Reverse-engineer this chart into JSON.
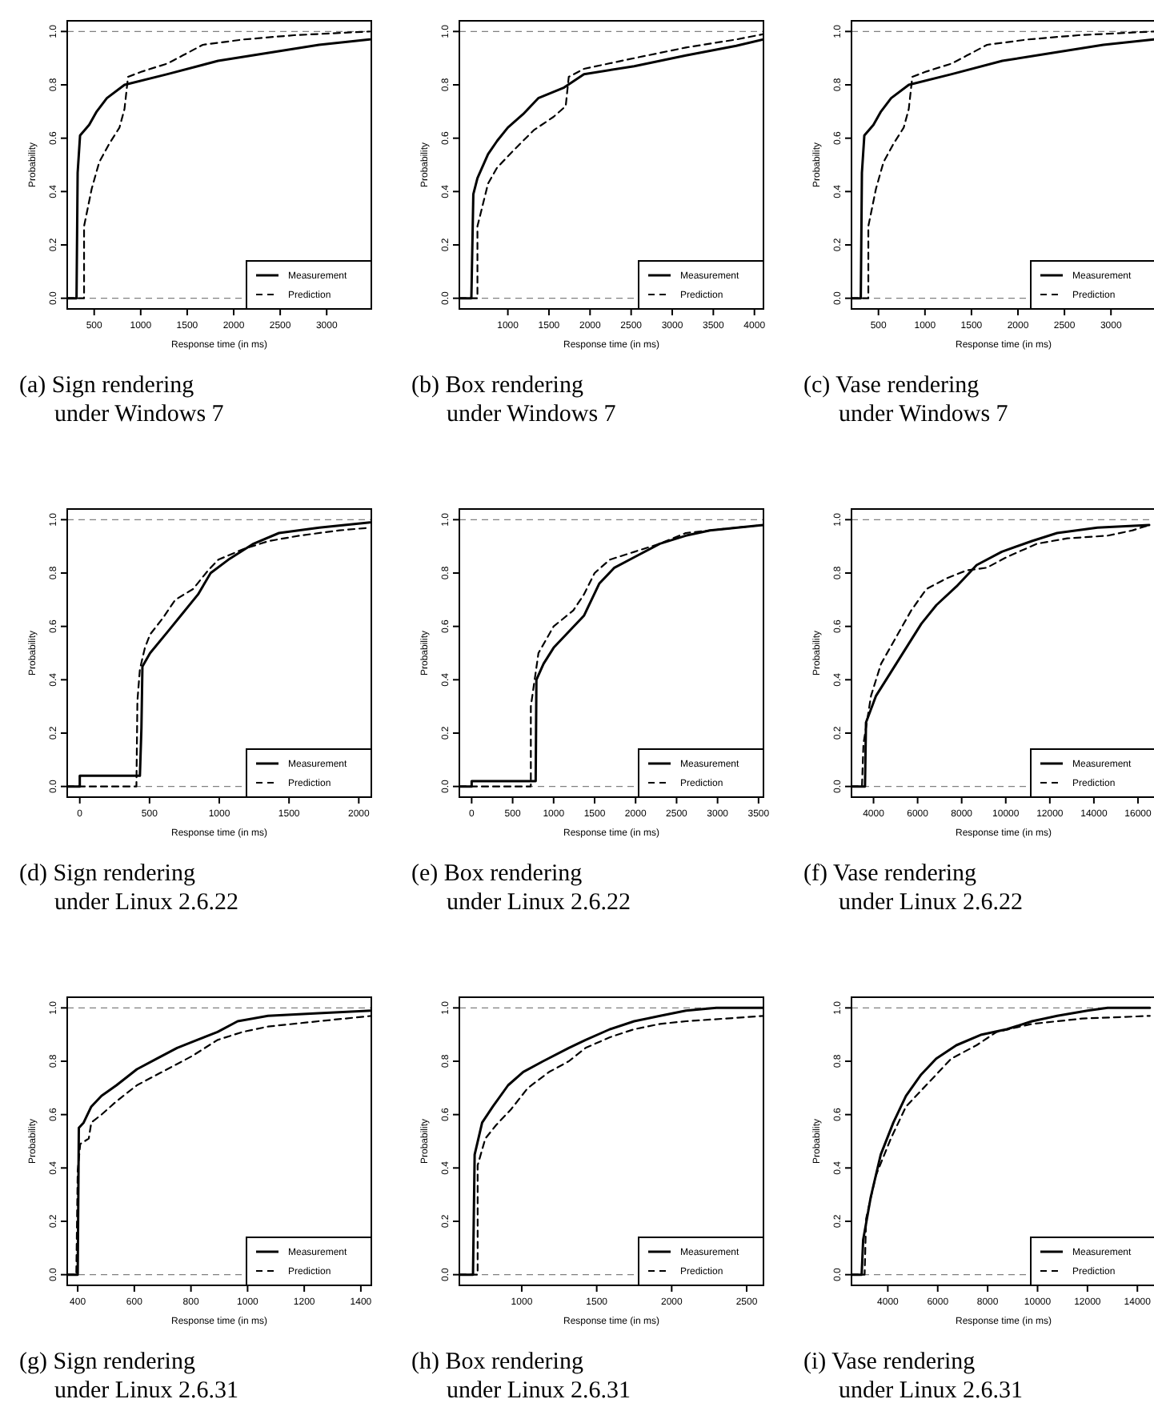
{
  "chart_data": [
    {
      "type": "line",
      "xlabel": "Response time (in ms)",
      "ylabel": "Probability",
      "annotations": [
        "(a) Sign rendering",
        "under Windows 7"
      ],
      "xlim": [
        210,
        3480
      ],
      "xticks": [
        500,
        1000,
        1500,
        2000,
        2500,
        3000
      ],
      "ylim": [
        -0.04,
        1.04
      ],
      "yticks": [
        {
          "value": 0,
          "label": "0.0"
        },
        {
          "value": 0.2,
          "label": "0.2"
        },
        {
          "value": 0.4,
          "label": "0.4"
        },
        {
          "value": 0.6,
          "label": "0.6"
        },
        {
          "value": 0.8,
          "label": "0.8"
        },
        {
          "value": 1,
          "label": "1.0"
        }
      ],
      "legend": "bottom right",
      "grid": false,
      "ref_lines": [
        {
          "axis": "y",
          "value": 0,
          "color": "#808080",
          "line_style": "dashed"
        },
        {
          "axis": "y",
          "value": 1,
          "color": "#808080",
          "line_style": "dashed"
        }
      ],
      "series": [
        {
          "name": "Measurement",
          "color": "#000000",
          "line_style": "solid",
          "x": [
            210,
            310,
            322,
            348,
            446,
            527,
            636,
            826,
            1288,
            1832,
            2375,
            2918,
            3462
          ],
          "values": [
            0,
            0,
            0.47,
            0.61,
            0.65,
            0.7,
            0.75,
            0.8,
            0.84,
            0.89,
            0.92,
            0.95,
            0.97
          ]
        },
        {
          "name": "Prediction",
          "color": "#000000",
          "line_style": "dashed",
          "x": [
            210,
            391,
            391,
            473,
            554,
            663,
            772,
            826,
            864,
            1016,
            1288,
            1451,
            1668,
            2103,
            2647,
            3462
          ],
          "values": [
            0,
            0,
            0.27,
            0.41,
            0.51,
            0.58,
            0.64,
            0.71,
            0.83,
            0.85,
            0.88,
            0.91,
            0.95,
            0.97,
            0.986,
            1.0
          ]
        }
      ]
    },
    {
      "type": "line",
      "xlabel": "Response time (in ms)",
      "ylabel": "Probability",
      "annotations": [
        "(b) Box rendering",
        "under Windows 7"
      ],
      "xlim": [
        410,
        4110
      ],
      "xticks": [
        1000,
        1500,
        2000,
        2500,
        3000,
        3500,
        4000
      ],
      "ylim": [
        -0.04,
        1.04
      ],
      "yticks": [
        {
          "value": 0,
          "label": "0.0"
        },
        {
          "value": 0.2,
          "label": "0.2"
        },
        {
          "value": 0.4,
          "label": "0.4"
        },
        {
          "value": 0.6,
          "label": "0.6"
        },
        {
          "value": 0.8,
          "label": "0.8"
        },
        {
          "value": 1,
          "label": "1.0"
        }
      ],
      "legend": "bottom right",
      "grid": false,
      "ref_lines": [
        {
          "axis": "y",
          "value": 0,
          "color": "#808080",
          "line_style": "dashed"
        },
        {
          "axis": "y",
          "value": 1,
          "color": "#808080",
          "line_style": "dashed"
        }
      ],
      "series": [
        {
          "name": "Measurement",
          "color": "#000000",
          "line_style": "solid",
          "x": [
            410,
            556,
            580,
            630,
            759,
            870,
            1000,
            1185,
            1370,
            1685,
            1926,
            2537,
            3167,
            3778,
            4110
          ],
          "values": [
            0,
            0,
            0.39,
            0.45,
            0.54,
            0.59,
            0.64,
            0.69,
            0.75,
            0.79,
            0.84,
            0.87,
            0.91,
            0.946,
            0.97
          ]
        },
        {
          "name": "Prediction",
          "color": "#000000",
          "line_style": "dashed",
          "x": [
            410,
            630,
            630,
            759,
            870,
            1056,
            1315,
            1556,
            1704,
            1741,
            1926,
            2537,
            3167,
            3778,
            4110
          ],
          "values": [
            0,
            0,
            0.27,
            0.43,
            0.49,
            0.55,
            0.63,
            0.68,
            0.72,
            0.83,
            0.86,
            0.9,
            0.94,
            0.97,
            0.99
          ]
        }
      ]
    },
    {
      "type": "line",
      "xlabel": "Response time (in ms)",
      "ylabel": "Probability",
      "annotations": [
        "(c) Vase rendering",
        "under Windows 7"
      ],
      "xlim": [
        210,
        3480
      ],
      "xticks": [
        500,
        1000,
        1500,
        2000,
        2500,
        3000
      ],
      "ylim": [
        -0.04,
        1.04
      ],
      "yticks": [
        {
          "value": 0,
          "label": "0.0"
        },
        {
          "value": 0.2,
          "label": "0.2"
        },
        {
          "value": 0.4,
          "label": "0.4"
        },
        {
          "value": 0.6,
          "label": "0.6"
        },
        {
          "value": 0.8,
          "label": "0.8"
        },
        {
          "value": 1,
          "label": "1.0"
        }
      ],
      "legend": "bottom right",
      "grid": false,
      "ref_lines": [
        {
          "axis": "y",
          "value": 0,
          "color": "#808080",
          "line_style": "dashed"
        },
        {
          "axis": "y",
          "value": 1,
          "color": "#808080",
          "line_style": "dashed"
        }
      ],
      "series": [
        {
          "name": "Measurement",
          "color": "#000000",
          "line_style": "solid",
          "x": [
            210,
            310,
            322,
            348,
            446,
            527,
            636,
            826,
            1288,
            1832,
            2375,
            2918,
            3462
          ],
          "values": [
            0,
            0,
            0.47,
            0.61,
            0.65,
            0.7,
            0.75,
            0.8,
            0.84,
            0.89,
            0.92,
            0.95,
            0.97
          ]
        },
        {
          "name": "Prediction",
          "color": "#000000",
          "line_style": "dashed",
          "x": [
            210,
            391,
            391,
            473,
            554,
            663,
            772,
            826,
            864,
            1016,
            1288,
            1451,
            1668,
            2103,
            2647,
            3462
          ],
          "values": [
            0,
            0,
            0.27,
            0.41,
            0.51,
            0.58,
            0.64,
            0.71,
            0.83,
            0.85,
            0.88,
            0.91,
            0.95,
            0.97,
            0.986,
            1.0
          ]
        }
      ]
    },
    {
      "type": "line",
      "xlabel": "Response time (in ms)",
      "ylabel": "Probability",
      "annotations": [
        "(d) Sign rendering",
        "under Linux 2.6.22"
      ],
      "xlim": [
        -90,
        2090
      ],
      "xticks": [
        0,
        500,
        1000,
        1500,
        2000
      ],
      "ylim": [
        -0.04,
        1.04
      ],
      "yticks": [
        {
          "value": 0,
          "label": "0.0"
        },
        {
          "value": 0.2,
          "label": "0.2"
        },
        {
          "value": 0.4,
          "label": "0.4"
        },
        {
          "value": 0.6,
          "label": "0.6"
        },
        {
          "value": 0.8,
          "label": "0.8"
        },
        {
          "value": 1,
          "label": "1.0"
        }
      ],
      "legend": "bottom right",
      "grid": false,
      "ref_lines": [
        {
          "axis": "y",
          "value": 0,
          "color": "#808080",
          "line_style": "dashed"
        },
        {
          "axis": "y",
          "value": 1,
          "color": "#808080",
          "line_style": "dashed"
        }
      ],
      "series": [
        {
          "name": "Measurement",
          "color": "#000000",
          "line_style": "solid",
          "x": [
            -90,
            0,
            0,
            431,
            442,
            449,
            504,
            630,
            739,
            848,
            938,
            1065,
            1246,
            1428,
            1717,
            2080
          ],
          "values": [
            0,
            0,
            0.04,
            0.04,
            0.22,
            0.45,
            0.5,
            0.58,
            0.65,
            0.72,
            0.8,
            0.85,
            0.91,
            0.95,
            0.97,
            0.99
          ]
        },
        {
          "name": "Prediction",
          "color": "#000000",
          "line_style": "dashed",
          "x": [
            -90,
            406,
            413,
            431,
            467,
            504,
            594,
            685,
            812,
            920,
            993,
            1174,
            1355,
            1572,
            1862,
            2080
          ],
          "values": [
            0,
            0,
            0.32,
            0.44,
            0.52,
            0.57,
            0.63,
            0.7,
            0.74,
            0.81,
            0.85,
            0.89,
            0.92,
            0.94,
            0.96,
            0.97
          ]
        }
      ]
    },
    {
      "type": "line",
      "xlabel": "Response time (in ms)",
      "ylabel": "Probability",
      "annotations": [
        "(e) Box rendering",
        "under Linux 2.6.22"
      ],
      "xlim": [
        -150,
        3560
      ],
      "xticks": [
        0,
        500,
        1000,
        1500,
        2000,
        2500,
        3000,
        3500
      ],
      "ylim": [
        -0.04,
        1.04
      ],
      "yticks": [
        {
          "value": 0,
          "label": "0.0"
        },
        {
          "value": 0.2,
          "label": "0.2"
        },
        {
          "value": 0.4,
          "label": "0.4"
        },
        {
          "value": 0.6,
          "label": "0.6"
        },
        {
          "value": 0.8,
          "label": "0.8"
        },
        {
          "value": 1,
          "label": "1.0"
        }
      ],
      "legend": "bottom right",
      "grid": false,
      "ref_lines": [
        {
          "axis": "y",
          "value": 0,
          "color": "#808080",
          "line_style": "dashed"
        },
        {
          "axis": "y",
          "value": 1,
          "color": "#808080",
          "line_style": "dashed"
        }
      ],
      "series": [
        {
          "name": "Measurement",
          "color": "#000000",
          "line_style": "solid",
          "x": [
            -150,
            0,
            0,
            781,
            790,
            877,
            1000,
            1185,
            1370,
            1556,
            1741,
            1988,
            2296,
            2611,
            2907,
            3556
          ],
          "values": [
            0,
            0,
            0.02,
            0.02,
            0.4,
            0.46,
            0.52,
            0.58,
            0.64,
            0.76,
            0.82,
            0.86,
            0.91,
            0.94,
            0.96,
            0.98
          ]
        },
        {
          "name": "Prediction",
          "color": "#000000",
          "line_style": "dashed",
          "x": [
            -150,
            722,
            722,
            815,
            1000,
            1241,
            1370,
            1500,
            1685,
            1988,
            2296,
            2611,
            3222,
            3556
          ],
          "values": [
            0,
            0,
            0.3,
            0.5,
            0.6,
            0.66,
            0.72,
            0.8,
            0.85,
            0.88,
            0.91,
            0.95,
            0.97,
            0.98
          ]
        }
      ]
    },
    {
      "type": "line",
      "xlabel": "Response time (in ms)",
      "ylabel": "Probability",
      "annotations": [
        "(f) Vase rendering",
        "under Linux 2.6.22"
      ],
      "xlim": [
        3000,
        16800
      ],
      "xticks": [
        4000,
        6000,
        8000,
        10000,
        12000,
        14000,
        16000
      ],
      "ylim": [
        -0.04,
        1.04
      ],
      "yticks": [
        {
          "value": 0,
          "label": "0.0"
        },
        {
          "value": 0.2,
          "label": "0.2"
        },
        {
          "value": 0.4,
          "label": "0.4"
        },
        {
          "value": 0.6,
          "label": "0.6"
        },
        {
          "value": 0.8,
          "label": "0.8"
        },
        {
          "value": 1,
          "label": "1.0"
        }
      ],
      "legend": "bottom right",
      "grid": false,
      "ref_lines": [
        {
          "axis": "y",
          "value": 0,
          "color": "#808080",
          "line_style": "dashed"
        },
        {
          "axis": "y",
          "value": 1,
          "color": "#808080",
          "line_style": "dashed"
        }
      ],
      "series": [
        {
          "name": "Measurement",
          "color": "#000000",
          "line_style": "solid",
          "x": [
            3000,
            3612,
            3658,
            4114,
            4800,
            5484,
            6169,
            6854,
            7767,
            8680,
            9822,
            11190,
            12330,
            14160,
            16510
          ],
          "values": [
            0,
            0,
            0.24,
            0.34,
            0.43,
            0.52,
            0.61,
            0.68,
            0.75,
            0.83,
            0.88,
            0.92,
            0.95,
            0.97,
            0.98
          ]
        },
        {
          "name": "Prediction",
          "color": "#000000",
          "line_style": "dashed",
          "x": [
            3000,
            3475,
            3543,
            3886,
            4342,
            5027,
            5712,
            6397,
            7311,
            8224,
            9137,
            10050,
            11420,
            12790,
            14620,
            15760,
            16510
          ],
          "values": [
            0,
            0,
            0.16,
            0.34,
            0.46,
            0.56,
            0.66,
            0.74,
            0.78,
            0.81,
            0.82,
            0.86,
            0.91,
            0.93,
            0.94,
            0.96,
            0.98
          ]
        }
      ]
    },
    {
      "type": "line",
      "xlabel": "Response time (in ms)",
      "ylabel": "Probability",
      "annotations": [
        "(g) Sign rendering",
        "under Linux 2.6.31"
      ],
      "xlim": [
        363,
        1437
      ],
      "xticks": [
        400,
        600,
        800,
        1000,
        1200,
        1400
      ],
      "ylim": [
        -0.04,
        1.04
      ],
      "yticks": [
        {
          "value": 0,
          "label": "0.0"
        },
        {
          "value": 0.2,
          "label": "0.2"
        },
        {
          "value": 0.4,
          "label": "0.4"
        },
        {
          "value": 0.6,
          "label": "0.6"
        },
        {
          "value": 0.8,
          "label": "0.8"
        },
        {
          "value": 1,
          "label": "1.0"
        }
      ],
      "legend": "bottom right",
      "grid": false,
      "ref_lines": [
        {
          "axis": "y",
          "value": 0,
          "color": "#808080",
          "line_style": "dashed"
        },
        {
          "axis": "y",
          "value": 1,
          "color": "#808080",
          "line_style": "dashed"
        }
      ],
      "series": [
        {
          "name": "Measurement",
          "color": "#000000",
          "line_style": "solid",
          "x": [
            363,
            400,
            404,
            421,
            448,
            484,
            537,
            609,
            680,
            751,
            822,
            894,
            965,
            1072,
            1250,
            1437
          ],
          "values": [
            0,
            0,
            0.55,
            0.57,
            0.63,
            0.67,
            0.71,
            0.77,
            0.81,
            0.85,
            0.88,
            0.91,
            0.95,
            0.97,
            0.98,
            0.99
          ]
        },
        {
          "name": "Prediction",
          "color": "#000000",
          "line_style": "dashed",
          "x": [
            363,
            395,
            400,
            409,
            439,
            448,
            484,
            537,
            609,
            716,
            805,
            894,
            983,
            1072,
            1250,
            1437
          ],
          "values": [
            0,
            0,
            0.39,
            0.49,
            0.51,
            0.57,
            0.6,
            0.65,
            0.71,
            0.77,
            0.82,
            0.88,
            0.91,
            0.93,
            0.95,
            0.97
          ]
        }
      ]
    },
    {
      "type": "line",
      "xlabel": "Response time (in ms)",
      "ylabel": "Probability",
      "annotations": [
        "(h) Box rendering",
        "under Linux 2.6.31"
      ],
      "xlim": [
        584,
        2612
      ],
      "xticks": [
        1000,
        1500,
        2000,
        2500
      ],
      "ylim": [
        -0.04,
        1.04
      ],
      "yticks": [
        {
          "value": 0,
          "label": "0.0"
        },
        {
          "value": 0.2,
          "label": "0.2"
        },
        {
          "value": 0.4,
          "label": "0.4"
        },
        {
          "value": 0.6,
          "label": "0.6"
        },
        {
          "value": 0.8,
          "label": "0.8"
        },
        {
          "value": 1,
          "label": "1.0"
        }
      ],
      "legend": "bottom right",
      "grid": false,
      "ref_lines": [
        {
          "axis": "y",
          "value": 0,
          "color": "#808080",
          "line_style": "dashed"
        },
        {
          "axis": "y",
          "value": 1,
          "color": "#808080",
          "line_style": "dashed"
        }
      ],
      "series": [
        {
          "name": "Measurement",
          "color": "#000000",
          "line_style": "solid",
          "x": [
            584,
            675,
            686,
            736,
            807,
            909,
            1010,
            1142,
            1314,
            1426,
            1588,
            1750,
            1923,
            2095,
            2298,
            2612
          ],
          "values": [
            0,
            0,
            0.45,
            0.57,
            0.63,
            0.71,
            0.76,
            0.8,
            0.85,
            0.88,
            0.92,
            0.95,
            0.97,
            0.99,
            1.0,
            1.0
          ]
        },
        {
          "name": "Prediction",
          "color": "#000000",
          "line_style": "dashed",
          "x": [
            584,
            706,
            706,
            757,
            828,
            929,
            1041,
            1183,
            1314,
            1426,
            1588,
            1750,
            1923,
            2095,
            2359,
            2612
          ],
          "values": [
            0,
            0,
            0.41,
            0.51,
            0.56,
            0.62,
            0.7,
            0.76,
            0.8,
            0.85,
            0.89,
            0.92,
            0.94,
            0.95,
            0.96,
            0.97
          ]
        }
      ]
    },
    {
      "type": "line",
      "xlabel": "Response time (in ms)",
      "ylabel": "Probability",
      "annotations": [
        "(i) Vase rendering",
        "under Linux 2.6.31"
      ],
      "xlim": [
        2545,
        14730
      ],
      "xticks": [
        4000,
        6000,
        8000,
        10000,
        12000,
        14000
      ],
      "ylim": [
        -0.04,
        1.04
      ],
      "yticks": [
        {
          "value": 0,
          "label": "0.0"
        },
        {
          "value": 0.2,
          "label": "0.2"
        },
        {
          "value": 0.4,
          "label": "0.4"
        },
        {
          "value": 0.6,
          "label": "0.6"
        },
        {
          "value": 0.8,
          "label": "0.8"
        },
        {
          "value": 1,
          "label": "1.0"
        }
      ],
      "legend": "bottom right",
      "grid": false,
      "ref_lines": [
        {
          "axis": "y",
          "value": 0,
          "color": "#808080",
          "line_style": "dashed"
        },
        {
          "axis": "y",
          "value": 1,
          "color": "#808080",
          "line_style": "dashed"
        }
      ],
      "series": [
        {
          "name": "Measurement",
          "color": "#000000",
          "line_style": "solid",
          "x": [
            2545,
            2952,
            3012,
            3315,
            3717,
            4222,
            4727,
            5333,
            5939,
            6747,
            7758,
            8768,
            9778,
            10788,
            12000,
            12808,
            14500
          ],
          "values": [
            0,
            0,
            0.13,
            0.29,
            0.45,
            0.57,
            0.67,
            0.75,
            0.81,
            0.86,
            0.9,
            0.92,
            0.95,
            0.97,
            0.99,
            1.0,
            1.0
          ]
        },
        {
          "name": "Prediction",
          "color": "#000000",
          "line_style": "dashed",
          "x": [
            2545,
            3071,
            3131,
            3515,
            4121,
            4727,
            5535,
            6545,
            7556,
            8364,
            9778,
            11798,
            14500
          ],
          "values": [
            0,
            0,
            0.21,
            0.37,
            0.51,
            0.63,
            0.71,
            0.81,
            0.86,
            0.91,
            0.94,
            0.96,
            0.97
          ]
        }
      ]
    }
  ]
}
